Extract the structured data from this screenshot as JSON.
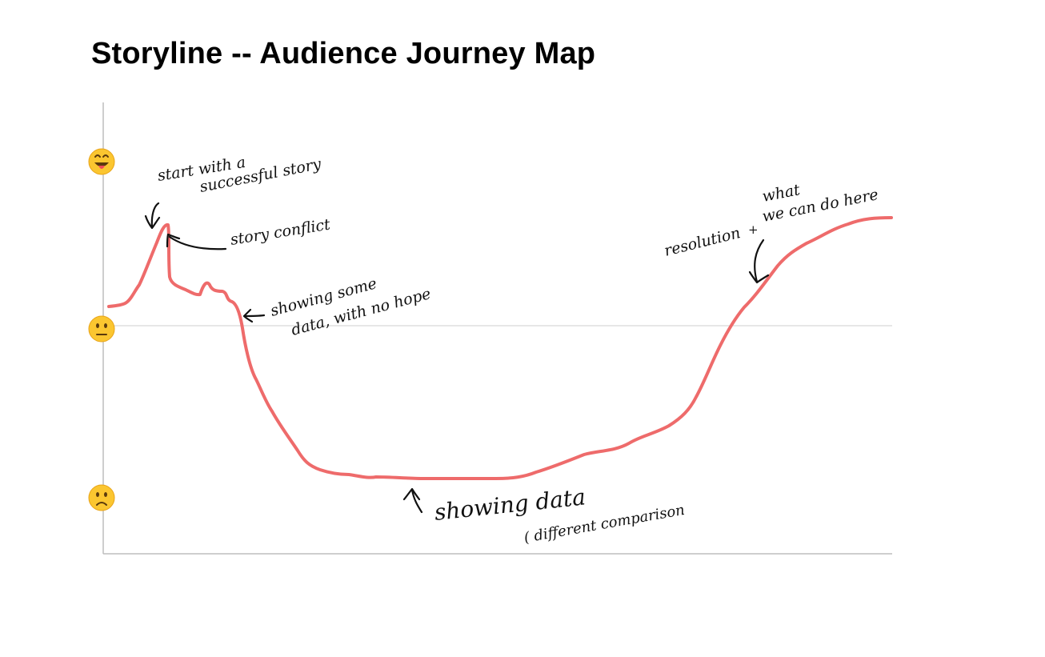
{
  "title": "Storyline -- Audience Journey Map",
  "colors": {
    "journey_line": "#ee6b6b",
    "axis": "#bdbdbd",
    "baseline": "#cfcfcf",
    "ink": "#111111",
    "emoji_face": "#fbc630",
    "emoji_outline": "#e8a317",
    "emoji_tongue": "#ef4a5a"
  },
  "mood_scale": [
    {
      "level": "happy",
      "icon": "grinning-face-with-tongue-icon"
    },
    {
      "level": "neutral",
      "icon": "neutral-face-icon"
    },
    {
      "level": "sad",
      "icon": "slightly-frowning-face-icon"
    }
  ],
  "annotations": {
    "start": {
      "line1": "start with a",
      "line2": "successful story"
    },
    "conflict": "story conflict",
    "some_data": {
      "line1": "showing some",
      "line2": "data, with no hope"
    },
    "showing_data": {
      "line1": "showing data",
      "line2": "( different comparison"
    },
    "resolution": {
      "word": "resolution",
      "line1": "what",
      "line2": "we can do here",
      "joiner": "+"
    }
  }
}
